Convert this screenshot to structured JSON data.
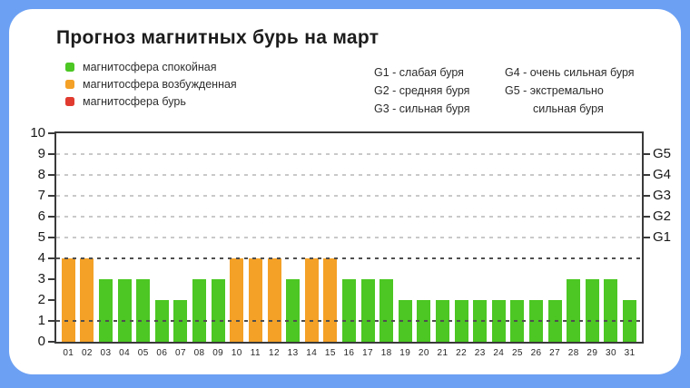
{
  "title": "Прогноз магнитных бурь на март",
  "colors": {
    "background": "#6CA0F3",
    "card": "#ffffff",
    "calm": "#4CC723",
    "excited": "#F4A127",
    "storm": "#E13B30",
    "axis": "#3a3a3a",
    "grid_light": "#c9c9c9",
    "grid_dark": "#4f4f4f"
  },
  "legend": {
    "items": [
      {
        "key": "calm",
        "label": "магнитосфера спокойная",
        "color": "#4CC723"
      },
      {
        "key": "excited",
        "label": "магнитосфера возбужденная",
        "color": "#F4A127"
      },
      {
        "key": "storm",
        "label": "магнитосфера бурь",
        "color": "#E13B30"
      }
    ]
  },
  "storm_scale": {
    "col1": [
      "G1 - слабая буря",
      "G2 - средняя буря",
      "G3 - сильная буря"
    ],
    "col2": [
      "G4 - очень сильная буря",
      "G5 - экстремально",
      "сильная буря"
    ]
  },
  "chart_data": {
    "type": "bar",
    "title": "Прогноз магнитных бурь на март",
    "categories": [
      "01",
      "02",
      "03",
      "04",
      "05",
      "06",
      "07",
      "08",
      "09",
      "10",
      "11",
      "12",
      "13",
      "14",
      "15",
      "16",
      "17",
      "18",
      "19",
      "20",
      "21",
      "22",
      "23",
      "24",
      "25",
      "26",
      "27",
      "28",
      "29",
      "30",
      "31"
    ],
    "values": [
      4,
      4,
      3,
      3,
      3,
      2,
      2,
      3,
      3,
      4,
      4,
      4,
      3,
      4,
      4,
      3,
      3,
      3,
      2,
      2,
      2,
      2,
      2,
      2,
      2,
      2,
      2,
      3,
      3,
      3,
      2
    ],
    "statuses": [
      "excited",
      "excited",
      "calm",
      "calm",
      "calm",
      "calm",
      "calm",
      "calm",
      "calm",
      "excited",
      "excited",
      "excited",
      "calm",
      "excited",
      "excited",
      "calm",
      "calm",
      "calm",
      "calm",
      "calm",
      "calm",
      "calm",
      "calm",
      "calm",
      "calm",
      "calm",
      "calm",
      "calm",
      "calm",
      "calm",
      "calm"
    ],
    "xlabel": "",
    "ylabel": "",
    "ylim": [
      0,
      10
    ],
    "yticks_left": [
      0,
      1,
      2,
      3,
      4,
      5,
      6,
      7,
      8,
      9,
      10
    ],
    "yticks_right": [
      {
        "label": "G1",
        "value": 5
      },
      {
        "label": "G2",
        "value": 6
      },
      {
        "label": "G3",
        "value": 7
      },
      {
        "label": "G4",
        "value": 8
      },
      {
        "label": "G5",
        "value": 9
      }
    ],
    "gridlines": {
      "light": [
        5,
        6,
        7,
        8,
        9
      ],
      "dark": [
        1,
        4
      ]
    },
    "grid_style": "dashed",
    "legend_position": "top-left"
  }
}
